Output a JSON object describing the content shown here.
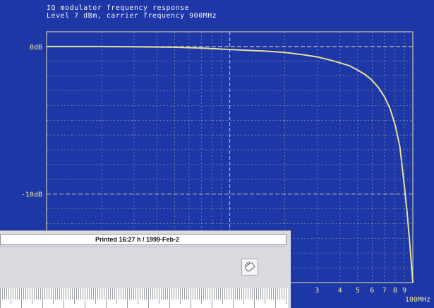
{
  "header": {
    "line1": "IQ modulator frequency response",
    "line2": "Level  7 dBm, carrier frequency 900MHz"
  },
  "colors": {
    "background": "#1d37a6",
    "grid": "#c9c7a6",
    "trace": "#e4df9c",
    "label": "#ede79a"
  },
  "chart_data": {
    "type": "line",
    "title": "IQ modulator frequency response",
    "subtitle": "Level  7 dBm, carrier frequency 900MHz",
    "xscale": "log",
    "ylim": [
      -16,
      1
    ],
    "y_ticks": [
      {
        "value": 0,
        "label": "0dB"
      },
      {
        "value": -10,
        "label": "-10dB"
      }
    ],
    "x_tick_labels": [
      {
        "value": 30,
        "label": "3"
      },
      {
        "value": 40,
        "label": "4"
      },
      {
        "value": 50,
        "label": "5"
      },
      {
        "value": 60,
        "label": "6"
      },
      {
        "value": 70,
        "label": "7"
      },
      {
        "value": 80,
        "label": "8"
      },
      {
        "value": 90,
        "label": "9"
      },
      {
        "value": 100,
        "label": "100MHz"
      }
    ],
    "grid": true,
    "series": [
      {
        "x": [
          1,
          1.5,
          2,
          3,
          5,
          7,
          10,
          15,
          20,
          25,
          30,
          35,
          40,
          45,
          50,
          55,
          60,
          65,
          70,
          75,
          80,
          85,
          90,
          93,
          96,
          98,
          100
        ],
        "y": [
          0,
          0,
          0,
          -0.02,
          -0.05,
          -0.1,
          -0.2,
          -0.3,
          -0.4,
          -0.55,
          -0.7,
          -0.9,
          -1.1,
          -1.3,
          -1.6,
          -1.9,
          -2.3,
          -2.8,
          -3.4,
          -4.2,
          -5.3,
          -6.8,
          -9.5,
          -11.2,
          -13.2,
          -14.6,
          -16.0
        ]
      }
    ]
  },
  "print_panel": {
    "printed": "Printed 16:27 h  /  1999-Feb-2"
  }
}
